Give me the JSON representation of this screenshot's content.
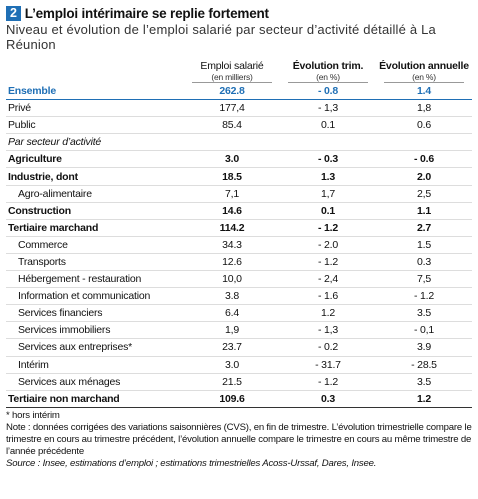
{
  "header": {
    "number": "2",
    "title": "L’emploi intérimaire se replie fortement",
    "subtitle": "Niveau et évolution de l’emploi salarié par secteur d’activité détaillé à La Réunion"
  },
  "table": {
    "columns": [
      {
        "title": "Emploi salarié",
        "unit": "(en milliers)"
      },
      {
        "title": "Évolution trim.",
        "unit": "(en %)"
      },
      {
        "title": "Évolution annuelle",
        "unit": "(en %)"
      }
    ],
    "rows": [
      [
        "Ensemble",
        "262.8",
        "- 0.8",
        "1.4"
      ],
      [
        "Privé",
        "177,4",
        "- 1,3",
        "1,8"
      ],
      [
        "Public",
        "85.4",
        "0.1",
        "0.6"
      ],
      [
        "Par secteur d’activité"
      ],
      [
        "Agriculture",
        "3.0",
        "- 0.3",
        "- 0.6"
      ],
      [
        "Industrie, dont",
        "18.5",
        "1.3",
        "2.0"
      ],
      [
        "Agro-alimentaire",
        "7,1",
        "1,7",
        "2,5"
      ],
      [
        "Construction",
        "14.6",
        "0.1",
        "1.1"
      ],
      [
        "Tertiaire marchand",
        "114.2",
        "- 1.2",
        "2.7"
      ],
      [
        "Commerce",
        "34.3",
        "- 2.0",
        "1.5"
      ],
      [
        "Transports",
        "12.6",
        "- 1.2",
        "0.3"
      ],
      [
        "Hébergement - restauration",
        "10,0",
        "- 2,4",
        "7,5"
      ],
      [
        "Information et communication",
        "3.8",
        "- 1.6",
        "- 1.2"
      ],
      [
        "Services financiers",
        "6.4",
        "1.2",
        "3.5"
      ],
      [
        "Services immobiliers",
        "1,9",
        "- 1,3",
        "- 0,1"
      ],
      [
        "Services aux entreprises*",
        "23.7",
        "- 0.2",
        "3.9"
      ],
      [
        "Intérim",
        "3.0",
        "- 31.7",
        "- 28.5"
      ],
      [
        "Services aux ménages",
        "21.5",
        "- 1.2",
        "3.5"
      ],
      [
        "Tertiaire non marchand",
        "109.6",
        "0.3",
        "1.2"
      ]
    ]
  },
  "footer": {
    "footnote": "* hors intérim",
    "note": "Note : données corrigées des variations saisonnières (CVS), en fin de trimestre. L’évolution trimestrielle compare le trimestre en cours au trimestre précédent, l’évolution annuelle compare le trimestre en cours au même trimestre de l’année précédente",
    "source": "Source : Insee, estimations d’emploi ; estimations trimestrielles Acoss-Urssaf, Dares, Insee."
  }
}
